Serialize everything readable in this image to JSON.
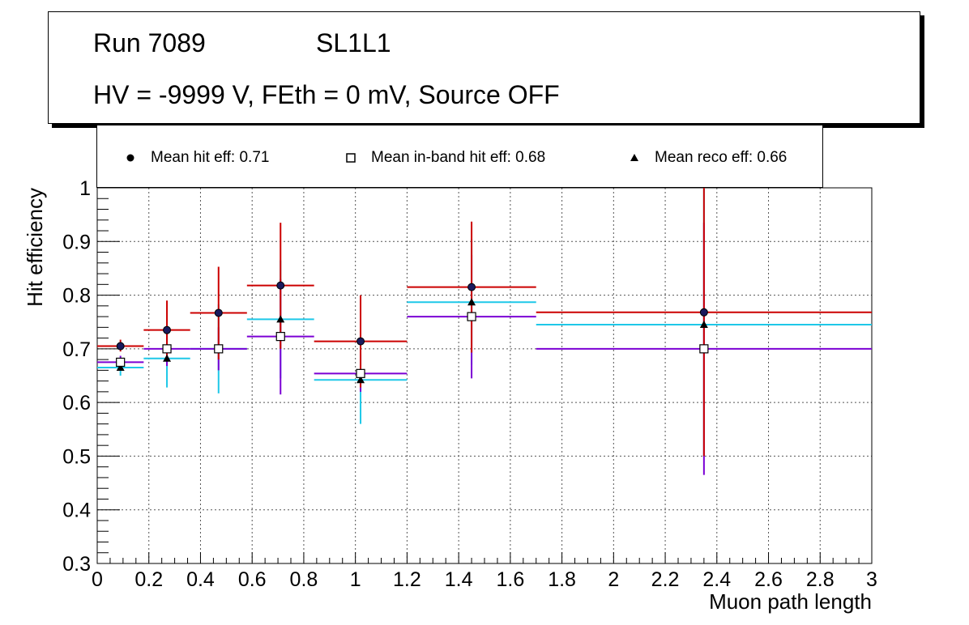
{
  "title": {
    "run": "Run 7089",
    "layer": "SL1L1",
    "conditions": "HV = -9999 V, FEth = 0 mV, Source OFF"
  },
  "legend": {
    "entries": [
      {
        "label": "Mean hit  eff: 0.71",
        "marker": "circle"
      },
      {
        "label": "Mean in-band hit eff: 0.68",
        "marker": "open-square"
      },
      {
        "label": "Mean reco eff: 0.66",
        "marker": "triangle"
      }
    ]
  },
  "colors": {
    "hit": "#cc0000",
    "inband": "#7b00d4",
    "inband_marker": "#1ec8e8",
    "reco": "#1ec8e8",
    "grid": "#555555"
  },
  "chart_data": {
    "type": "scatter",
    "xlabel": "Muon path length",
    "ylabel": "Hit efficiency",
    "xlim": [
      0,
      3
    ],
    "ylim": [
      0.3,
      1.0
    ],
    "xticks": [
      0,
      0.2,
      0.4,
      0.6,
      0.8,
      1,
      1.2,
      1.4,
      1.6,
      1.8,
      2,
      2.2,
      2.4,
      2.6,
      2.8,
      3
    ],
    "xtick_labels": [
      "0",
      "0.2",
      "0.4",
      "0.6",
      "0.8",
      "1",
      "1.2",
      "1.4",
      "1.6",
      "1.8",
      "2",
      "2.2",
      "2.4",
      "2.6",
      "2.8",
      "3"
    ],
    "yticks": [
      0.3,
      0.4,
      0.5,
      0.6,
      0.7,
      0.8,
      0.9,
      1.0
    ],
    "ytick_labels": [
      "0.3",
      "0.4",
      "0.5",
      "0.6",
      "0.7",
      "0.8",
      "0.9",
      "1"
    ],
    "grid": true,
    "series": [
      {
        "name": "Mean hit  eff: 0.71",
        "marker": "circle",
        "points": [
          {
            "x": 0.09,
            "xlo": 0.0,
            "xhi": 0.18,
            "y": 0.705,
            "ylo": 0.695,
            "yhi": 0.717
          },
          {
            "x": 0.27,
            "xlo": 0.18,
            "xhi": 0.36,
            "y": 0.735,
            "ylo": 0.68,
            "yhi": 0.79
          },
          {
            "x": 0.47,
            "xlo": 0.36,
            "xhi": 0.58,
            "y": 0.767,
            "ylo": 0.68,
            "yhi": 0.853
          },
          {
            "x": 0.71,
            "xlo": 0.58,
            "xhi": 0.84,
            "y": 0.818,
            "ylo": 0.7,
            "yhi": 0.935
          },
          {
            "x": 1.02,
            "xlo": 0.84,
            "xhi": 1.2,
            "y": 0.714,
            "ylo": 0.628,
            "yhi": 0.8
          },
          {
            "x": 1.45,
            "xlo": 1.2,
            "xhi": 1.7,
            "y": 0.815,
            "ylo": 0.693,
            "yhi": 0.937
          },
          {
            "x": 2.35,
            "xlo": 1.7,
            "xhi": 3.0,
            "y": 0.768,
            "ylo": 0.5,
            "yhi": 1.0
          }
        ]
      },
      {
        "name": "Mean in-band hit eff: 0.68",
        "marker": "open-square",
        "points": [
          {
            "x": 0.09,
            "xlo": 0.0,
            "xhi": 0.18,
            "y": 0.675,
            "ylo": 0.663,
            "yhi": 0.687
          },
          {
            "x": 0.27,
            "xlo": 0.18,
            "xhi": 0.36,
            "y": 0.7,
            "ylo": 0.668,
            "yhi": 0.732
          },
          {
            "x": 0.47,
            "xlo": 0.36,
            "xhi": 0.58,
            "y": 0.7,
            "ylo": 0.66,
            "yhi": 0.74
          },
          {
            "x": 0.71,
            "xlo": 0.58,
            "xhi": 0.84,
            "y": 0.723,
            "ylo": 0.615,
            "yhi": 0.83
          },
          {
            "x": 1.02,
            "xlo": 0.84,
            "xhi": 1.2,
            "y": 0.654,
            "ylo": 0.62,
            "yhi": 0.69
          },
          {
            "x": 1.45,
            "xlo": 1.2,
            "xhi": 1.7,
            "y": 0.76,
            "ylo": 0.645,
            "yhi": 0.875
          },
          {
            "x": 2.35,
            "xlo": 1.7,
            "xhi": 3.0,
            "y": 0.7,
            "ylo": 0.465,
            "yhi": 0.935
          }
        ]
      },
      {
        "name": "Mean reco eff: 0.66",
        "marker": "triangle",
        "points": [
          {
            "x": 0.09,
            "xlo": 0.0,
            "xhi": 0.18,
            "y": 0.665,
            "ylo": 0.65,
            "yhi": 0.68
          },
          {
            "x": 0.27,
            "xlo": 0.18,
            "xhi": 0.36,
            "y": 0.682,
            "ylo": 0.628,
            "yhi": 0.736
          },
          {
            "x": 0.47,
            "xlo": 0.36,
            "xhi": 0.58,
            "y": 0.7,
            "ylo": 0.617,
            "yhi": 0.783
          },
          {
            "x": 0.71,
            "xlo": 0.58,
            "xhi": 0.84,
            "y": 0.755,
            "ylo": 0.645,
            "yhi": 0.865
          },
          {
            "x": 1.02,
            "xlo": 0.84,
            "xhi": 1.2,
            "y": 0.642,
            "ylo": 0.56,
            "yhi": 0.724
          },
          {
            "x": 1.45,
            "xlo": 1.2,
            "xhi": 1.7,
            "y": 0.787,
            "ylo": 0.67,
            "yhi": 0.905
          },
          {
            "x": 2.35,
            "xlo": 1.7,
            "xhi": 3.0,
            "y": 0.745,
            "ylo": 0.5,
            "yhi": 1.0
          }
        ]
      }
    ]
  }
}
